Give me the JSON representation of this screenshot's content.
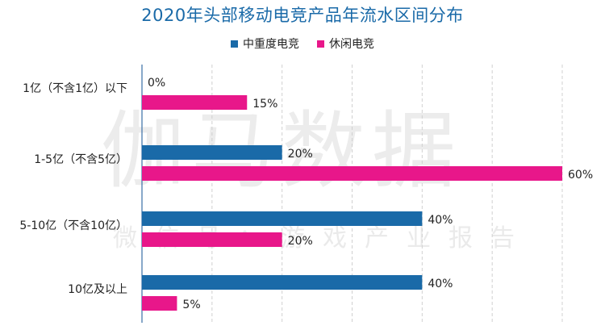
{
  "chart_data": {
    "type": "bar",
    "orientation": "horizontal",
    "title": "2020年头部移动电竞产品年流水区间分布",
    "categories": [
      "1亿（不含1亿）以下",
      "1-5亿（不含5亿）",
      "5-10亿（不含10亿）",
      "10亿及以上"
    ],
    "series": [
      {
        "name": "中重度电竞",
        "color": "#1a6aa8",
        "values": [
          0,
          20,
          40,
          40
        ]
      },
      {
        "name": "休闲电竞",
        "color": "#e8178a",
        "values": [
          15,
          60,
          20,
          5
        ]
      }
    ],
    "value_suffix": "%",
    "xlim": [
      0,
      60
    ],
    "grid": "vertical dashed",
    "legend_position": "top-center"
  },
  "watermark": {
    "main": "伽马数据",
    "sub": "微信号：游戏产业报告"
  }
}
